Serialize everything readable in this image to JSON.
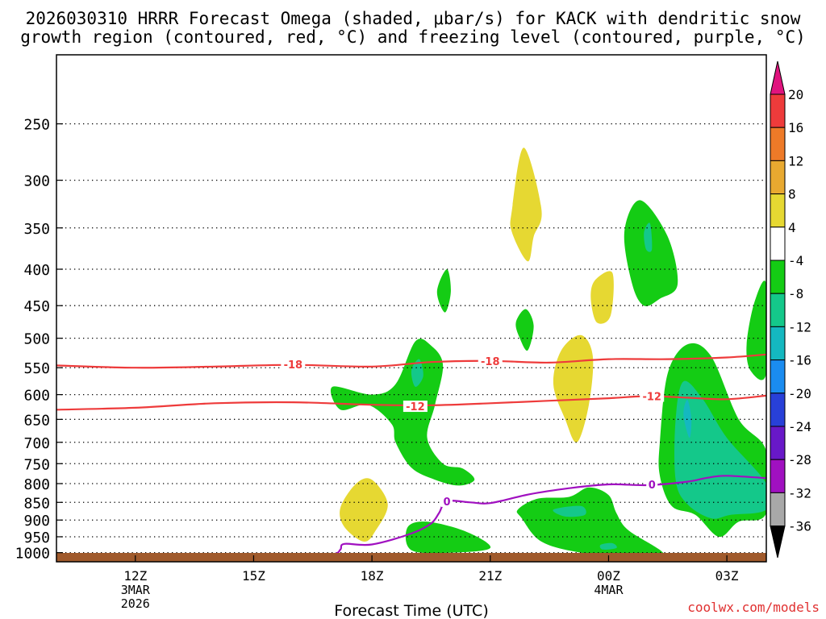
{
  "header": {
    "title_line1": "2026030310 HRRR Forecast Omega (shaded, μbar/s) for KACK with dendritic snow",
    "title_line2": "growth region (contoured, red, °C) and freezing level (contoured, purple, °C)"
  },
  "footer": {
    "credit": "coolwx.com/models"
  },
  "chart_data": {
    "type": "heatmap",
    "title": "2026030310 HRRR Forecast Omega (shaded, μbar/s) for KACK with dendritic snow growth region (contoured, red, °C) and freezing level (contoured, purple, °C)",
    "xlabel": "Forecast Time (UTC)",
    "ylabel": "",
    "x_unit": "hours since 2026-03-03 10Z",
    "xlim": [
      0,
      18
    ],
    "y_scale": "log-pressure",
    "ylim_hPa": [
      1030,
      200
    ],
    "x_ticks": [
      {
        "x": 2,
        "label": "12Z",
        "sub1": "3MAR",
        "sub2": "2026"
      },
      {
        "x": 5,
        "label": "15Z",
        "sub1": "",
        "sub2": ""
      },
      {
        "x": 8,
        "label": "18Z",
        "sub1": "",
        "sub2": ""
      },
      {
        "x": 11,
        "label": "21Z",
        "sub1": "",
        "sub2": ""
      },
      {
        "x": 14,
        "label": "00Z",
        "sub1": "4MAR",
        "sub2": ""
      },
      {
        "x": 17,
        "label": "03Z",
        "sub1": "",
        "sub2": ""
      }
    ],
    "y_ticks": [
      250,
      300,
      350,
      400,
      450,
      500,
      550,
      600,
      650,
      700,
      750,
      800,
      850,
      900,
      950,
      1000
    ],
    "grid": true,
    "colorbar": {
      "levels": [
        20,
        16,
        12,
        8,
        4,
        -4,
        -8,
        -12,
        -16,
        -20,
        -24,
        -28,
        -32,
        -36
      ],
      "bins": [
        {
          "label": ">20",
          "color": "#e0137e"
        },
        {
          "label": "16 to 20",
          "color": "#ee3b3b"
        },
        {
          "label": "12 to 16",
          "color": "#ee7a28"
        },
        {
          "label": "8 to 12",
          "color": "#e8a930"
        },
        {
          "label": "4 to 8",
          "color": "#e6d832"
        },
        {
          "label": "-4 to 4",
          "color": "#ffffff"
        },
        {
          "label": "-8 to -4",
          "color": "#14cc14"
        },
        {
          "label": "-12 to -8",
          "color": "#14c88a"
        },
        {
          "label": "-16 to -12",
          "color": "#14b8c0"
        },
        {
          "label": "-20 to -16",
          "color": "#1a8cf0"
        },
        {
          "label": "-24 to -20",
          "color": "#2840d8"
        },
        {
          "label": "-28 to -24",
          "color": "#6818c8"
        },
        {
          "label": "-32 to -28",
          "color": "#a010c0"
        },
        {
          "label": "-36 to -32",
          "color": "#a8a8a8"
        },
        {
          "label": "<-36",
          "color": "#000000"
        }
      ]
    },
    "contours": [
      {
        "label": "-18",
        "color": "#ee3b3b",
        "label_positions": [
          [
            6.0,
            544
          ],
          [
            11.0,
            538
          ]
        ],
        "points": [
          [
            0,
            546
          ],
          [
            2,
            550
          ],
          [
            4,
            548
          ],
          [
            6,
            545
          ],
          [
            8,
            548
          ],
          [
            9.5,
            540
          ],
          [
            11,
            538
          ],
          [
            12.5,
            541
          ],
          [
            14,
            535
          ],
          [
            15.5,
            535
          ],
          [
            17,
            532
          ],
          [
            18,
            527
          ]
        ]
      },
      {
        "label": "-12",
        "color": "#ee3b3b",
        "label_positions": [
          [
            9.1,
            623
          ],
          [
            15.1,
            603
          ]
        ],
        "points": [
          [
            0,
            630
          ],
          [
            2,
            626
          ],
          [
            4,
            617
          ],
          [
            6,
            615
          ],
          [
            8,
            620
          ],
          [
            9.5,
            621
          ],
          [
            11,
            617
          ],
          [
            12.5,
            612
          ],
          [
            14,
            607
          ],
          [
            15,
            603
          ],
          [
            16,
            606
          ],
          [
            17,
            609
          ],
          [
            18,
            602
          ]
        ]
      },
      {
        "label": "0",
        "color": "#a010c0",
        "label_positions": [
          [
            9.9,
            847
          ],
          [
            15.1,
            802
          ]
        ],
        "points": [
          [
            4,
            1032
          ],
          [
            6,
            1015
          ],
          [
            7,
            1005
          ],
          [
            7.2,
            990
          ],
          [
            7.3,
            972
          ],
          [
            8,
            974
          ],
          [
            9,
            940
          ],
          [
            9.5,
            910
          ],
          [
            9.7,
            880
          ],
          [
            9.9,
            847
          ],
          [
            10.5,
            850
          ],
          [
            11,
            852
          ],
          [
            12,
            828
          ],
          [
            13,
            812
          ],
          [
            14,
            802
          ],
          [
            15,
            804
          ],
          [
            16,
            795
          ],
          [
            16.5,
            785
          ],
          [
            17,
            780
          ],
          [
            18,
            786
          ]
        ]
      }
    ],
    "shaded_regions": [
      {
        "value_bin": "-8 to -4",
        "points": [
          [
            7.0,
            585
          ],
          [
            8,
            600
          ],
          [
            8.6,
            580
          ],
          [
            9.1,
            505
          ],
          [
            9.5,
            512
          ],
          [
            9.8,
            545
          ],
          [
            9.6,
            620
          ],
          [
            9.4,
            690
          ],
          [
            9.8,
            750
          ],
          [
            10.3,
            762
          ],
          [
            10.6,
            790
          ],
          [
            10.2,
            805
          ],
          [
            9.6,
            790
          ],
          [
            9.0,
            760
          ],
          [
            8.6,
            700
          ],
          [
            8.5,
            660
          ],
          [
            7.9,
            620
          ],
          [
            7.2,
            630
          ]
        ]
      },
      {
        "value_bin": "-12 to -8",
        "points": [
          [
            9.0,
            555
          ],
          [
            9.2,
            535
          ],
          [
            9.3,
            565
          ],
          [
            9.1,
            585
          ]
        ]
      },
      {
        "value_bin": "4 to 8",
        "points": [
          [
            7.2,
            865
          ],
          [
            7.6,
            800
          ],
          [
            8.0,
            790
          ],
          [
            8.4,
            855
          ],
          [
            8.1,
            930
          ],
          [
            7.8,
            965
          ],
          [
            7.3,
            920
          ]
        ]
      },
      {
        "value_bin": "-8 to -4",
        "points": [
          [
            8.9,
            922
          ],
          [
            9.4,
            905
          ],
          [
            10.4,
            935
          ],
          [
            11.0,
            985
          ],
          [
            10.0,
            1000
          ],
          [
            9.0,
            992
          ]
        ]
      },
      {
        "value_bin": "-8 to -4",
        "points": [
          [
            9.65,
            430
          ],
          [
            9.9,
            400
          ],
          [
            10.0,
            430
          ],
          [
            9.85,
            460
          ]
        ]
      },
      {
        "value_bin": "4 to 8",
        "points": [
          [
            11.55,
            330
          ],
          [
            11.85,
            270
          ],
          [
            12.3,
            330
          ],
          [
            12.1,
            360
          ],
          [
            11.95,
            390
          ],
          [
            11.55,
            355
          ]
        ]
      },
      {
        "value_bin": "-8 to -4",
        "points": [
          [
            11.65,
            475
          ],
          [
            11.9,
            455
          ],
          [
            12.1,
            480
          ],
          [
            11.95,
            520
          ],
          [
            11.75,
            500
          ]
        ]
      },
      {
        "value_bin": "4 to 8",
        "points": [
          [
            12.6,
            580
          ],
          [
            12.8,
            520
          ],
          [
            13.3,
            495
          ],
          [
            13.6,
            530
          ],
          [
            13.5,
            620
          ],
          [
            13.2,
            700
          ],
          [
            12.9,
            650
          ]
        ]
      },
      {
        "value_bin": "4 to 8",
        "points": [
          [
            13.55,
            440
          ],
          [
            13.65,
            415
          ],
          [
            14.1,
            405
          ],
          [
            14.05,
            465
          ],
          [
            13.7,
            475
          ]
        ]
      },
      {
        "value_bin": "-8 to -4",
        "points": [
          [
            14.4,
            355
          ],
          [
            14.8,
            320
          ],
          [
            15.5,
            360
          ],
          [
            15.75,
            420
          ],
          [
            15.3,
            440
          ],
          [
            14.9,
            450
          ],
          [
            14.6,
            420
          ]
        ]
      },
      {
        "value_bin": "-12 to -8",
        "points": [
          [
            14.9,
            355
          ],
          [
            15.05,
            345
          ],
          [
            15.1,
            375
          ],
          [
            14.95,
            375
          ]
        ]
      },
      {
        "value_bin": "-8 to -4",
        "points": [
          [
            11.7,
            870
          ],
          [
            12.2,
            840
          ],
          [
            13.0,
            835
          ],
          [
            13.5,
            810
          ],
          [
            14.0,
            830
          ],
          [
            14.2,
            880
          ],
          [
            14.5,
            930
          ],
          [
            15.4,
            1005
          ],
          [
            14.5,
            1012
          ],
          [
            13.3,
            1000
          ],
          [
            12.3,
            965
          ],
          [
            11.8,
            895
          ]
        ]
      },
      {
        "value_bin": "-12 to -8",
        "points": [
          [
            12.6,
            870
          ],
          [
            13.3,
            860
          ],
          [
            13.4,
            885
          ],
          [
            12.9,
            890
          ]
        ]
      },
      {
        "value_bin": "-12 to -8",
        "points": [
          [
            13.8,
            975
          ],
          [
            14.1,
            970
          ],
          [
            14.2,
            985
          ],
          [
            13.85,
            990
          ]
        ]
      },
      {
        "value_bin": "-8 to -4",
        "points": [
          [
            15.3,
            700
          ],
          [
            15.5,
            560
          ],
          [
            16.0,
            510
          ],
          [
            16.6,
            530
          ],
          [
            17.3,
            650
          ],
          [
            18.0,
            720
          ],
          [
            18.0,
            880
          ],
          [
            17.3,
            905
          ],
          [
            16.8,
            950
          ],
          [
            16.2,
            885
          ],
          [
            15.6,
            860
          ],
          [
            15.3,
            780
          ]
        ]
      },
      {
        "value_bin": "-12 to -8",
        "points": [
          [
            15.7,
            650
          ],
          [
            15.9,
            575
          ],
          [
            16.4,
            610
          ],
          [
            17.0,
            690
          ],
          [
            18.0,
            800
          ],
          [
            18.0,
            870
          ],
          [
            17.1,
            885
          ],
          [
            16.6,
            895
          ],
          [
            16.0,
            855
          ],
          [
            15.7,
            790
          ]
        ]
      },
      {
        "value_bin": "-16 to -12",
        "points": [
          [
            15.9,
            640
          ],
          [
            16.0,
            610
          ],
          [
            16.1,
            650
          ],
          [
            16.05,
            690
          ]
        ]
      },
      {
        "value_bin": "-8 to -4",
        "points": [
          [
            17.5,
            510
          ],
          [
            17.7,
            445
          ],
          [
            18.0,
            420
          ],
          [
            18.0,
            560
          ],
          [
            17.6,
            555
          ]
        ]
      }
    ],
    "ground": {
      "color": "#a05a2c"
    }
  }
}
